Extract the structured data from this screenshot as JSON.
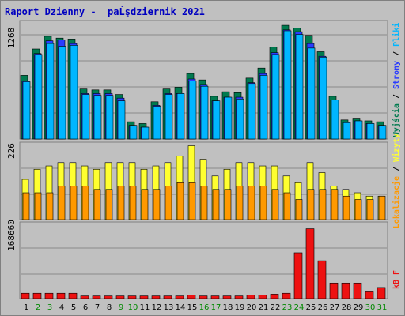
{
  "title": "Raport Dzienny -  paĹşdziernik 2021",
  "colors": {
    "wyjscia": "#007a4f",
    "strony": "#2a3cff",
    "pliki": "#00b6ff",
    "wizyty": "#ffff30",
    "lokalizacje": "#ff9900",
    "kb": "#ee1111",
    "weekend_label": "#008800",
    "weekday_label": "#000000"
  },
  "x_days": [
    "1",
    "2",
    "3",
    "4",
    "5",
    "6",
    "7",
    "8",
    "9",
    "10",
    "11",
    "12",
    "13",
    "14",
    "15",
    "16",
    "17",
    "18",
    "19",
    "20",
    "21",
    "22",
    "23",
    "24",
    "25",
    "26",
    "27",
    "28",
    "29",
    "30",
    "31"
  ],
  "weekend_days": [
    "2",
    "3",
    "9",
    "10",
    "16",
    "17",
    "23",
    "24",
    "30",
    "31"
  ],
  "right_labels": {
    "panel1": [
      "Wyjścia",
      "Strony",
      "Pliki"
    ],
    "panel2": [
      "Lokalizacje",
      "Wizyty"
    ],
    "panel3": [
      "kB F"
    ]
  },
  "chart_data": [
    {
      "type": "bar",
      "ylim": [
        0,
        1268
      ],
      "ytick": "1268",
      "categories": [
        "1",
        "2",
        "3",
        "4",
        "5",
        "6",
        "7",
        "8",
        "9",
        "10",
        "11",
        "12",
        "13",
        "14",
        "15",
        "16",
        "17",
        "18",
        "19",
        "20",
        "21",
        "22",
        "23",
        "24",
        "25",
        "26",
        "27",
        "28",
        "29",
        "30",
        "31"
      ],
      "series": [
        {
          "name": "Wyjścia",
          "values": [
            700,
            990,
            1130,
            1110,
            1100,
            550,
            540,
            540,
            490,
            190,
            170,
            410,
            550,
            570,
            720,
            650,
            470,
            520,
            510,
            670,
            780,
            1010,
            1250,
            1220,
            1140,
            960,
            470,
            210,
            230,
            200,
            190
          ]
        },
        {
          "name": "Strony",
          "values": [
            640,
            940,
            1080,
            1090,
            1050,
            500,
            500,
            500,
            450,
            150,
            130,
            370,
            500,
            500,
            660,
            600,
            420,
            460,
            460,
            620,
            720,
            950,
            1200,
            1180,
            1050,
            910,
            430,
            180,
            200,
            170,
            150
          ]
        },
        {
          "name": "Pliki",
          "values": [
            630,
            930,
            1050,
            1020,
            1030,
            490,
            480,
            480,
            420,
            150,
            130,
            360,
            490,
            500,
            640,
            580,
            420,
            460,
            440,
            610,
            700,
            930,
            1190,
            1150,
            1000,
            900,
            430,
            180,
            200,
            170,
            150
          ]
        }
      ]
    },
    {
      "type": "bar",
      "ylim": [
        0,
        226
      ],
      "ytick": "226",
      "categories": [
        "1",
        "2",
        "3",
        "4",
        "5",
        "6",
        "7",
        "8",
        "9",
        "10",
        "11",
        "12",
        "13",
        "14",
        "15",
        "16",
        "17",
        "18",
        "19",
        "20",
        "21",
        "22",
        "23",
        "24",
        "25",
        "26",
        "27",
        "28",
        "29",
        "30",
        "31"
      ],
      "series": [
        {
          "name": "Wizyty",
          "values": [
            120,
            150,
            160,
            170,
            170,
            160,
            150,
            170,
            170,
            170,
            150,
            160,
            170,
            190,
            220,
            180,
            130,
            150,
            170,
            170,
            160,
            160,
            130,
            110,
            170,
            140,
            100,
            90,
            80,
            70,
            70
          ]
        },
        {
          "name": "Lokalizacje",
          "values": [
            80,
            80,
            80,
            100,
            100,
            100,
            90,
            90,
            100,
            100,
            90,
            90,
            100,
            110,
            110,
            100,
            90,
            90,
            100,
            100,
            100,
            90,
            80,
            60,
            90,
            90,
            90,
            70,
            60,
            60,
            70
          ]
        }
      ]
    },
    {
      "type": "bar",
      "ylim": [
        0,
        168660
      ],
      "ytick": "168660",
      "categories": [
        "1",
        "2",
        "3",
        "4",
        "5",
        "6",
        "7",
        "8",
        "9",
        "10",
        "11",
        "12",
        "13",
        "14",
        "15",
        "16",
        "17",
        "18",
        "19",
        "20",
        "21",
        "22",
        "23",
        "24",
        "25",
        "26",
        "27",
        "28",
        "29",
        "30",
        "31"
      ],
      "series": [
        {
          "name": "kB F",
          "values": [
            12000,
            12000,
            12000,
            12000,
            12000,
            6000,
            6000,
            6000,
            6000,
            6000,
            6000,
            6000,
            6000,
            6000,
            8000,
            6000,
            6000,
            6000,
            6000,
            8000,
            8000,
            10000,
            12000,
            103000,
            157000,
            85000,
            35000,
            35000,
            35000,
            17000,
            25000
          ]
        }
      ]
    }
  ]
}
